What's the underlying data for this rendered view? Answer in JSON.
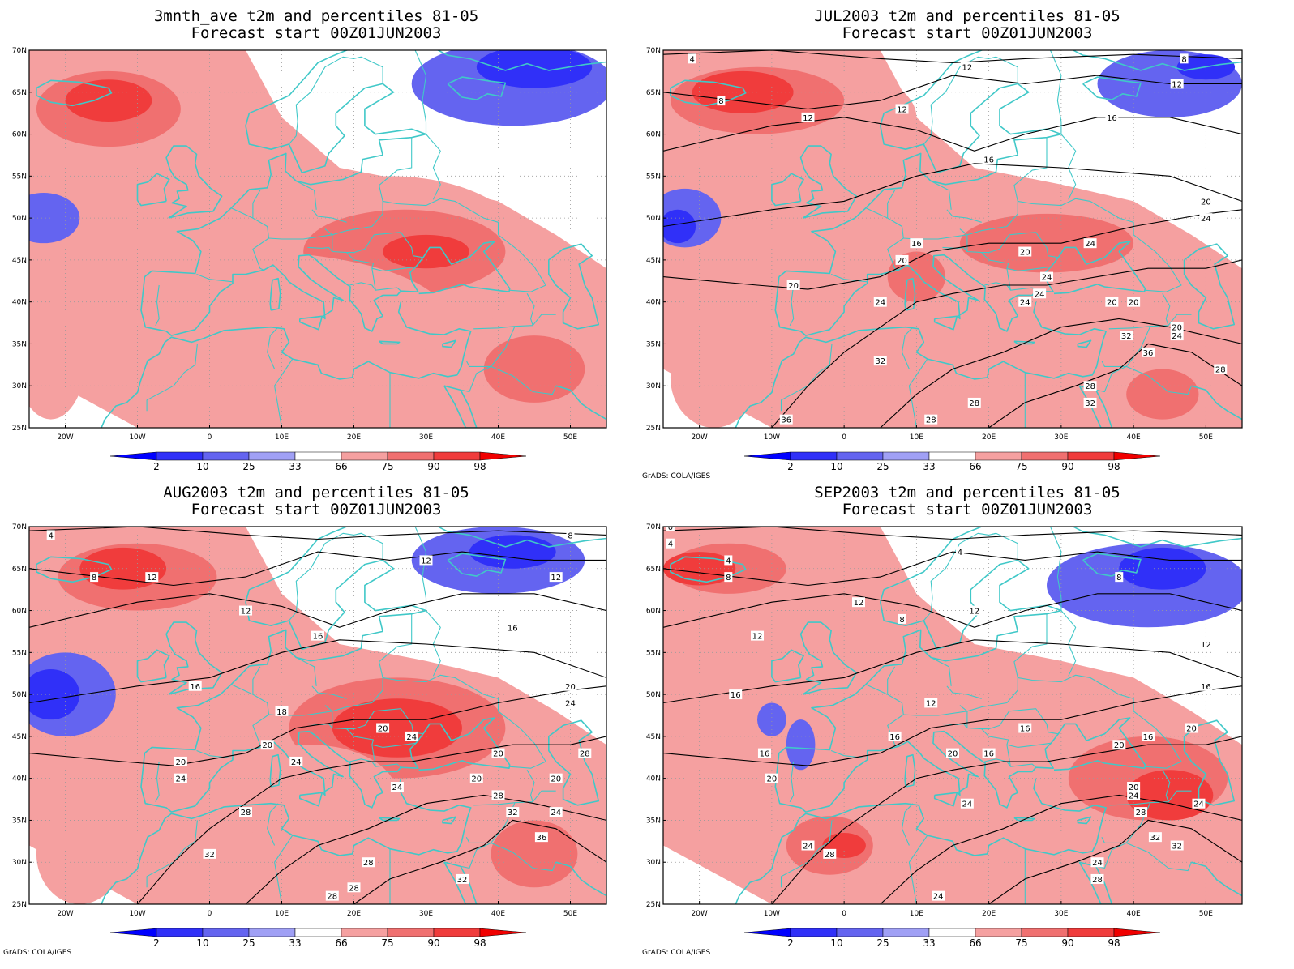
{
  "panels": [
    {
      "id": "p1",
      "title_line1": "3mnth_ave t2m and percentiles 81-05",
      "title_line2": "Forecast start 00Z01JUN2003",
      "credit": "",
      "contour_labels": [],
      "blobs": [
        {
          "c": 4,
          "lon": -12,
          "lat": 62,
          "rx": 14,
          "ry": 7
        },
        {
          "c": 5,
          "lon": -14,
          "lat": 63,
          "rx": 10,
          "ry": 4.5
        },
        {
          "c": 6,
          "lon": -14,
          "lat": 64,
          "rx": 6,
          "ry": 2.5
        },
        {
          "c": 4,
          "lon": 25,
          "lat": 45,
          "rx": 20,
          "ry": 10
        },
        {
          "c": 5,
          "lon": 27,
          "lat": 46,
          "rx": 14,
          "ry": 5
        },
        {
          "c": 6,
          "lon": 30,
          "lat": 46,
          "rx": 6,
          "ry": 2
        },
        {
          "c": 4,
          "lon": 5,
          "lat": 38,
          "rx": 28,
          "ry": 8
        },
        {
          "c": 5,
          "lon": 45,
          "lat": 32,
          "rx": 7,
          "ry": 4
        },
        {
          "c": 4,
          "lon": -22,
          "lat": 34,
          "rx": 5,
          "ry": 8
        },
        {
          "c": 2,
          "lon": 42,
          "lat": 66,
          "rx": 14,
          "ry": 5
        },
        {
          "c": 1,
          "lon": 45,
          "lat": 68,
          "rx": 8,
          "ry": 2.5
        },
        {
          "c": 2,
          "lon": -23,
          "lat": 50,
          "rx": 5,
          "ry": 3
        }
      ]
    },
    {
      "id": "p2",
      "title_line1": "JUL2003 t2m and percentiles 81-05",
      "title_line2": "Forecast start 00Z01JUN2003",
      "credit": "GrADS: COLA/IGES",
      "contour_labels": [
        {
          "t": "4",
          "lon": -21,
          "lat": 69
        },
        {
          "t": "8",
          "lon": -17,
          "lat": 64
        },
        {
          "t": "12",
          "lon": -5,
          "lat": 62
        },
        {
          "t": "12",
          "lon": 8,
          "lat": 63
        },
        {
          "t": "12",
          "lon": 17,
          "lat": 68
        },
        {
          "t": "8",
          "lon": 47,
          "lat": 69
        },
        {
          "t": "12",
          "lon": 46,
          "lat": 66
        },
        {
          "t": "16",
          "lon": 37,
          "lat": 62
        },
        {
          "t": "16",
          "lon": 20,
          "lat": 57
        },
        {
          "t": "20",
          "lon": 50,
          "lat": 52
        },
        {
          "t": "24",
          "lon": 50,
          "lat": 50
        },
        {
          "t": "16",
          "lon": 10,
          "lat": 47
        },
        {
          "t": "20",
          "lon": 25,
          "lat": 46
        },
        {
          "t": "24",
          "lon": 34,
          "lat": 47
        },
        {
          "t": "20",
          "lon": 8,
          "lat": 45
        },
        {
          "t": "24",
          "lon": 28,
          "lat": 43
        },
        {
          "t": "24",
          "lon": 27,
          "lat": 41
        },
        {
          "t": "20",
          "lon": -7,
          "lat": 42
        },
        {
          "t": "24",
          "lon": 5,
          "lat": 40
        },
        {
          "t": "24",
          "lon": 25,
          "lat": 40
        },
        {
          "t": "20",
          "lon": 37,
          "lat": 40
        },
        {
          "t": "20",
          "lon": 40,
          "lat": 40
        },
        {
          "t": "20",
          "lon": 46,
          "lat": 37
        },
        {
          "t": "24",
          "lon": 46,
          "lat": 36
        },
        {
          "t": "32",
          "lon": 39,
          "lat": 36
        },
        {
          "t": "36",
          "lon": 42,
          "lat": 34
        },
        {
          "t": "28",
          "lon": 52,
          "lat": 32
        },
        {
          "t": "32",
          "lon": 5,
          "lat": 33
        },
        {
          "t": "28",
          "lon": 34,
          "lat": 30
        },
        {
          "t": "32",
          "lon": 34,
          "lat": 28
        },
        {
          "t": "28",
          "lon": 18,
          "lat": 28
        },
        {
          "t": "36",
          "lon": -8,
          "lat": 26
        },
        {
          "t": "28",
          "lon": 12,
          "lat": 26
        }
      ],
      "blobs": [
        {
          "c": 4,
          "lon": -8,
          "lat": 62,
          "rx": 18,
          "ry": 7
        },
        {
          "c": 5,
          "lon": -12,
          "lat": 64,
          "rx": 12,
          "ry": 4
        },
        {
          "c": 6,
          "lon": -14,
          "lat": 65,
          "rx": 7,
          "ry": 2.5
        },
        {
          "c": 4,
          "lon": 25,
          "lat": 46,
          "rx": 20,
          "ry": 8
        },
        {
          "c": 5,
          "lon": 28,
          "lat": 47,
          "rx": 12,
          "ry": 3.5
        },
        {
          "c": 4,
          "lon": 8,
          "lat": 42,
          "rx": 8,
          "ry": 6
        },
        {
          "c": 5,
          "lon": 10,
          "lat": 43,
          "rx": 4,
          "ry": 3
        },
        {
          "c": 4,
          "lon": 43,
          "lat": 30,
          "rx": 9,
          "ry": 5
        },
        {
          "c": 5,
          "lon": 44,
          "lat": 29,
          "rx": 5,
          "ry": 3
        },
        {
          "c": 4,
          "lon": -18,
          "lat": 31,
          "rx": 6,
          "ry": 6
        },
        {
          "c": 2,
          "lon": 45,
          "lat": 66,
          "rx": 10,
          "ry": 4
        },
        {
          "c": 1,
          "lon": 50,
          "lat": 68,
          "rx": 4,
          "ry": 1.5
        },
        {
          "c": 2,
          "lon": -22,
          "lat": 50,
          "rx": 5,
          "ry": 3.5
        },
        {
          "c": 1,
          "lon": -23,
          "lat": 49,
          "rx": 2.5,
          "ry": 2
        }
      ]
    },
    {
      "id": "p3",
      "title_line1": "AUG2003 t2m and percentiles 81-05",
      "title_line2": "Forecast start 00Z01JUN2003",
      "credit": "GrADS: COLA/IGES",
      "contour_labels": [
        {
          "t": "4",
          "lon": -22,
          "lat": 69
        },
        {
          "t": "8",
          "lon": -16,
          "lat": 64
        },
        {
          "t": "12",
          "lon": -8,
          "lat": 64
        },
        {
          "t": "12",
          "lon": 5,
          "lat": 60
        },
        {
          "t": "12",
          "lon": 30,
          "lat": 66
        },
        {
          "t": "12",
          "lon": 48,
          "lat": 64
        },
        {
          "t": "8",
          "lon": 50,
          "lat": 69
        },
        {
          "t": "16",
          "lon": 15,
          "lat": 57
        },
        {
          "t": "16",
          "lon": 42,
          "lat": 58
        },
        {
          "t": "16",
          "lon": -2,
          "lat": 51
        },
        {
          "t": "20",
          "lon": 50,
          "lat": 51
        },
        {
          "t": "24",
          "lon": 50,
          "lat": 49
        },
        {
          "t": "18",
          "lon": 10,
          "lat": 48
        },
        {
          "t": "20",
          "lon": 24,
          "lat": 46
        },
        {
          "t": "24",
          "lon": 28,
          "lat": 45
        },
        {
          "t": "20",
          "lon": 8,
          "lat": 44
        },
        {
          "t": "24",
          "lon": 12,
          "lat": 42
        },
        {
          "t": "20",
          "lon": 40,
          "lat": 43
        },
        {
          "t": "28",
          "lon": 52,
          "lat": 43
        },
        {
          "t": "20",
          "lon": -4,
          "lat": 42
        },
        {
          "t": "24",
          "lon": -4,
          "lat": 40
        },
        {
          "t": "24",
          "lon": 26,
          "lat": 39
        },
        {
          "t": "20",
          "lon": 37,
          "lat": 40
        },
        {
          "t": "20",
          "lon": 48,
          "lat": 40
        },
        {
          "t": "28",
          "lon": 40,
          "lat": 38
        },
        {
          "t": "32",
          "lon": 42,
          "lat": 36
        },
        {
          "t": "24",
          "lon": 48,
          "lat": 36
        },
        {
          "t": "36",
          "lon": 46,
          "lat": 33
        },
        {
          "t": "28",
          "lon": 5,
          "lat": 36
        },
        {
          "t": "32",
          "lon": 0,
          "lat": 31
        },
        {
          "t": "28",
          "lon": 22,
          "lat": 30
        },
        {
          "t": "28",
          "lon": 20,
          "lat": 27
        },
        {
          "t": "32",
          "lon": 35,
          "lat": 28
        },
        {
          "t": "28",
          "lon": 17,
          "lat": 26
        }
      ],
      "blobs": [
        {
          "c": 4,
          "lon": -8,
          "lat": 62,
          "rx": 16,
          "ry": 6
        },
        {
          "c": 5,
          "lon": -10,
          "lat": 64,
          "rx": 11,
          "ry": 4
        },
        {
          "c": 6,
          "lon": -12,
          "lat": 65,
          "rx": 6,
          "ry": 2.5
        },
        {
          "c": 4,
          "lon": 25,
          "lat": 45,
          "rx": 22,
          "ry": 9
        },
        {
          "c": 5,
          "lon": 26,
          "lat": 46,
          "rx": 15,
          "ry": 6
        },
        {
          "c": 6,
          "lon": 26,
          "lat": 46,
          "rx": 9,
          "ry": 3.5
        },
        {
          "c": 4,
          "lon": 14,
          "lat": 38,
          "rx": 12,
          "ry": 6
        },
        {
          "c": 5,
          "lon": 45,
          "lat": 31,
          "rx": 6,
          "ry": 4
        },
        {
          "c": 4,
          "lon": -18,
          "lat": 31,
          "rx": 6,
          "ry": 6
        },
        {
          "c": 2,
          "lon": 40,
          "lat": 66,
          "rx": 12,
          "ry": 4
        },
        {
          "c": 1,
          "lon": 42,
          "lat": 67,
          "rx": 6,
          "ry": 2
        },
        {
          "c": 2,
          "lon": -20,
          "lat": 50,
          "rx": 7,
          "ry": 5
        },
        {
          "c": 1,
          "lon": -22,
          "lat": 50,
          "rx": 4,
          "ry": 3
        }
      ]
    },
    {
      "id": "p4",
      "title_line1": "SEP2003 t2m and percentiles 81-05",
      "title_line2": "Forecast start 00Z01JUN2003",
      "credit": "GrADS: COLA/IGES",
      "contour_labels": [
        {
          "t": "0",
          "lon": -24,
          "lat": 70
        },
        {
          "t": "4",
          "lon": -24,
          "lat": 68
        },
        {
          "t": "4",
          "lon": -16,
          "lat": 66
        },
        {
          "t": "8",
          "lon": -16,
          "lat": 64
        },
        {
          "t": "4",
          "lon": 16,
          "lat": 67
        },
        {
          "t": "8",
          "lon": 38,
          "lat": 64
        },
        {
          "t": "12",
          "lon": 2,
          "lat": 61
        },
        {
          "t": "8",
          "lon": 8,
          "lat": 59
        },
        {
          "t": "12",
          "lon": 18,
          "lat": 60
        },
        {
          "t": "12",
          "lon": -12,
          "lat": 57
        },
        {
          "t": "12",
          "lon": 50,
          "lat": 56
        },
        {
          "t": "16",
          "lon": -15,
          "lat": 50
        },
        {
          "t": "16",
          "lon": 50,
          "lat": 51
        },
        {
          "t": "12",
          "lon": 12,
          "lat": 49
        },
        {
          "t": "16",
          "lon": 25,
          "lat": 46
        },
        {
          "t": "16",
          "lon": 42,
          "lat": 45
        },
        {
          "t": "20",
          "lon": 48,
          "lat": 46
        },
        {
          "t": "16",
          "lon": 7,
          "lat": 45
        },
        {
          "t": "20",
          "lon": 15,
          "lat": 43
        },
        {
          "t": "16",
          "lon": 20,
          "lat": 43
        },
        {
          "t": "20",
          "lon": 38,
          "lat": 44
        },
        {
          "t": "16",
          "lon": -11,
          "lat": 43
        },
        {
          "t": "20",
          "lon": -10,
          "lat": 40
        },
        {
          "t": "20",
          "lon": 40,
          "lat": 39
        },
        {
          "t": "24",
          "lon": 40,
          "lat": 38
        },
        {
          "t": "24",
          "lon": 17,
          "lat": 37
        },
        {
          "t": "24",
          "lon": 49,
          "lat": 37
        },
        {
          "t": "28",
          "lon": 41,
          "lat": 36
        },
        {
          "t": "32",
          "lon": 43,
          "lat": 33
        },
        {
          "t": "32",
          "lon": 46,
          "lat": 32
        },
        {
          "t": "24",
          "lon": -5,
          "lat": 32
        },
        {
          "t": "28",
          "lon": -2,
          "lat": 31
        },
        {
          "t": "24",
          "lon": 35,
          "lat": 30
        },
        {
          "t": "28",
          "lon": 35,
          "lat": 28
        },
        {
          "t": "24",
          "lon": 13,
          "lat": 26
        }
      ],
      "blobs": [
        {
          "c": 4,
          "lon": -12,
          "lat": 63,
          "rx": 14,
          "ry": 6
        },
        {
          "c": 5,
          "lon": -16,
          "lat": 65,
          "rx": 8,
          "ry": 3
        },
        {
          "c": 6,
          "lon": -20,
          "lat": 65,
          "rx": 5,
          "ry": 2
        },
        {
          "c": 4,
          "lon": 38,
          "lat": 40,
          "rx": 16,
          "ry": 8
        },
        {
          "c": 5,
          "lon": 42,
          "lat": 40,
          "rx": 11,
          "ry": 5
        },
        {
          "c": 6,
          "lon": 45,
          "lat": 38,
          "rx": 6,
          "ry": 3
        },
        {
          "c": 4,
          "lon": -2,
          "lat": 32,
          "rx": 10,
          "ry": 6
        },
        {
          "c": 5,
          "lon": -2,
          "lat": 32,
          "rx": 6,
          "ry": 3.5
        },
        {
          "c": 6,
          "lon": 0,
          "lat": 32,
          "rx": 3,
          "ry": 1.5
        },
        {
          "c": 4,
          "lon": 40,
          "lat": 30,
          "rx": 8,
          "ry": 5
        },
        {
          "c": 2,
          "lon": 42,
          "lat": 63,
          "rx": 14,
          "ry": 5
        },
        {
          "c": 1,
          "lon": 44,
          "lat": 65,
          "rx": 6,
          "ry": 2.5
        },
        {
          "c": 2,
          "lon": -10,
          "lat": 47,
          "rx": 2,
          "ry": 2
        },
        {
          "c": 2,
          "lon": -6,
          "lat": 44,
          "rx": 2,
          "ry": 3
        }
      ]
    }
  ],
  "map": {
    "lon_ticks": [
      "20W",
      "10W",
      "0",
      "10E",
      "20E",
      "30E",
      "40E",
      "50E"
    ],
    "lon_tick_values": [
      -20,
      -10,
      0,
      10,
      20,
      30,
      40,
      50
    ],
    "lat_ticks": [
      "70N",
      "65N",
      "60N",
      "55N",
      "50N",
      "45N",
      "40N",
      "35N",
      "30N",
      "25N"
    ],
    "lat_tick_values": [
      70,
      65,
      60,
      55,
      50,
      45,
      40,
      35,
      30,
      25
    ],
    "lon_range": [
      -25,
      55
    ],
    "lat_range": [
      25,
      70
    ],
    "coast_color": "#40c8c8",
    "contour_color": "#000000",
    "grid": "dotted"
  },
  "colorbar": {
    "labels": [
      "2",
      "10",
      "25",
      "33",
      "66",
      "75",
      "90",
      "98"
    ],
    "colors": [
      "#0000ff",
      "#3030f8",
      "#6464f0",
      "#a0a0f5",
      "#ffffff",
      "#f5a0a0",
      "#f07070",
      "#f03c3c",
      "#f00000"
    ],
    "field_colors": [
      "#ffffff",
      "#3030f8",
      "#6464f0",
      "#a0a0f5",
      "#f5a0a0",
      "#f07070",
      "#f03c3c",
      "#f00000"
    ]
  }
}
